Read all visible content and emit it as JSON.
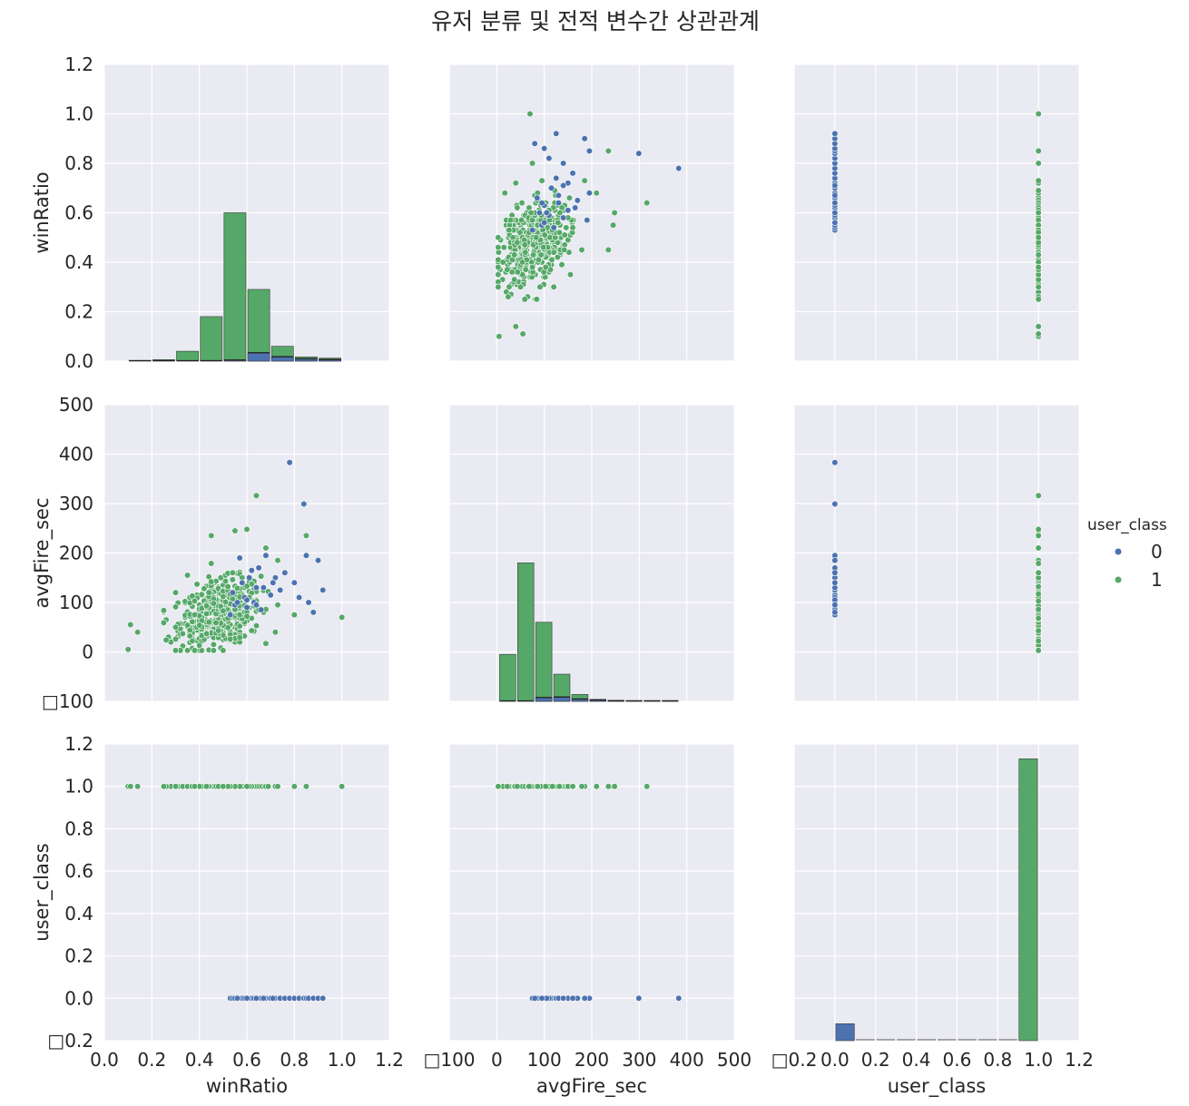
{
  "title": "유저 분류 및 전적 변수간 상관관계",
  "variables": [
    "winRatio",
    "avgFire_sec",
    "user_class"
  ],
  "legend": {
    "title": "user_class",
    "entries": [
      {
        "label": "0",
        "color": "#4c72b0"
      },
      {
        "label": "1",
        "color": "#55a868"
      }
    ]
  },
  "chart_data": {
    "type": "scatter",
    "layout": "pairplot 3x3",
    "title": "유저 분류 및 전적 변수간 상관관계",
    "colors": {
      "background": "#eaeaf2",
      "grid": "#ffffff",
      "class0": "#4c72b0",
      "class1": "#55a868"
    },
    "axes": {
      "winRatio": {
        "range": [
          0.0,
          1.2
        ],
        "ticks": [
          "0.0",
          "0.2",
          "0.4",
          "0.6",
          "0.8",
          "1.0",
          "1.2"
        ]
      },
      "avgFire_sec": {
        "range": [
          -100,
          500
        ],
        "ticks": [
          "□100",
          "0",
          "100",
          "200",
          "300",
          "400",
          "500"
        ]
      },
      "user_class": {
        "range": [
          -0.2,
          1.2
        ],
        "ticks": [
          "□0.2",
          "0.0",
          "0.2",
          "0.4",
          "0.6",
          "0.8",
          "1.0",
          "1.2"
        ]
      }
    },
    "histograms": {
      "winRatio": {
        "bins": [
          0.1,
          0.2,
          0.3,
          0.4,
          0.5,
          0.6,
          0.7,
          0.8,
          0.9,
          1.0
        ],
        "class1": [
          0.003,
          0.006,
          0.04,
          0.18,
          0.6,
          0.29,
          0.06,
          0.017,
          0.012
        ],
        "class0": [
          0,
          0,
          0,
          0,
          0.003,
          0.032,
          0.016,
          0.008,
          0.005
        ]
      },
      "avgFire_sec": {
        "bins": [
          4,
          42,
          80,
          118,
          156,
          194,
          232,
          270,
          308,
          346,
          384
        ],
        "class1": [
          -5,
          180,
          60,
          -45,
          -86,
          -96,
          -98,
          -99,
          -99.5,
          -99.8
        ],
        "class0": [
          -100,
          -100,
          -93,
          -92,
          -96,
          -98,
          -99.5,
          -99.7,
          -99.7,
          -99.8
        ]
      },
      "user_class": {
        "bins": [
          0.0,
          0.1,
          0.2,
          0.3,
          0.4,
          0.5,
          0.6,
          0.7,
          0.8,
          0.9,
          1.0
        ],
        "class0": [
          -0.12,
          -0.2,
          -0.2,
          -0.2,
          -0.2,
          -0.2,
          -0.2,
          -0.2,
          -0.2,
          -0.2
        ],
        "class1": [
          -0.2,
          -0.2,
          -0.2,
          -0.2,
          -0.2,
          -0.2,
          -0.2,
          -0.2,
          -0.2,
          1.13
        ]
      }
    },
    "scatter_class0": [
      [
        0.53,
        75
      ],
      [
        0.54,
        120
      ],
      [
        0.55,
        95
      ],
      [
        0.57,
        190
      ],
      [
        0.58,
        140
      ],
      [
        0.59,
        110
      ],
      [
        0.6,
        90
      ],
      [
        0.61,
        150
      ],
      [
        0.62,
        165
      ],
      [
        0.63,
        100
      ],
      [
        0.64,
        130
      ],
      [
        0.65,
        170
      ],
      [
        0.66,
        85
      ],
      [
        0.68,
        195
      ],
      [
        0.7,
        115
      ],
      [
        0.72,
        150
      ],
      [
        0.74,
        125
      ],
      [
        0.76,
        160
      ],
      [
        0.78,
        383
      ],
      [
        0.8,
        140
      ],
      [
        0.82,
        110
      ],
      [
        0.84,
        299
      ],
      [
        0.85,
        195
      ],
      [
        0.86,
        100
      ],
      [
        0.88,
        80
      ],
      [
        0.9,
        185
      ],
      [
        0.92,
        125
      ],
      [
        0.56,
        100
      ],
      [
        0.6,
        105
      ],
      [
        0.64,
        95
      ],
      [
        0.67,
        130
      ],
      [
        0.71,
        140
      ]
    ],
    "scatter_class1_extremes": [
      [
        0.1,
        5
      ],
      [
        0.11,
        55
      ],
      [
        0.14,
        40
      ],
      [
        0.25,
        80
      ],
      [
        0.27,
        30
      ],
      [
        0.45,
        235
      ],
      [
        0.55,
        245
      ],
      [
        0.6,
        248
      ],
      [
        0.64,
        316
      ],
      [
        0.85,
        235
      ],
      [
        1.0,
        70
      ],
      [
        0.3,
        120
      ],
      [
        0.35,
        155
      ],
      [
        0.8,
        75
      ],
      [
        0.73,
        185
      ],
      [
        0.68,
        210
      ],
      [
        0.26,
        65
      ],
      [
        0.28,
        20
      ]
    ]
  }
}
